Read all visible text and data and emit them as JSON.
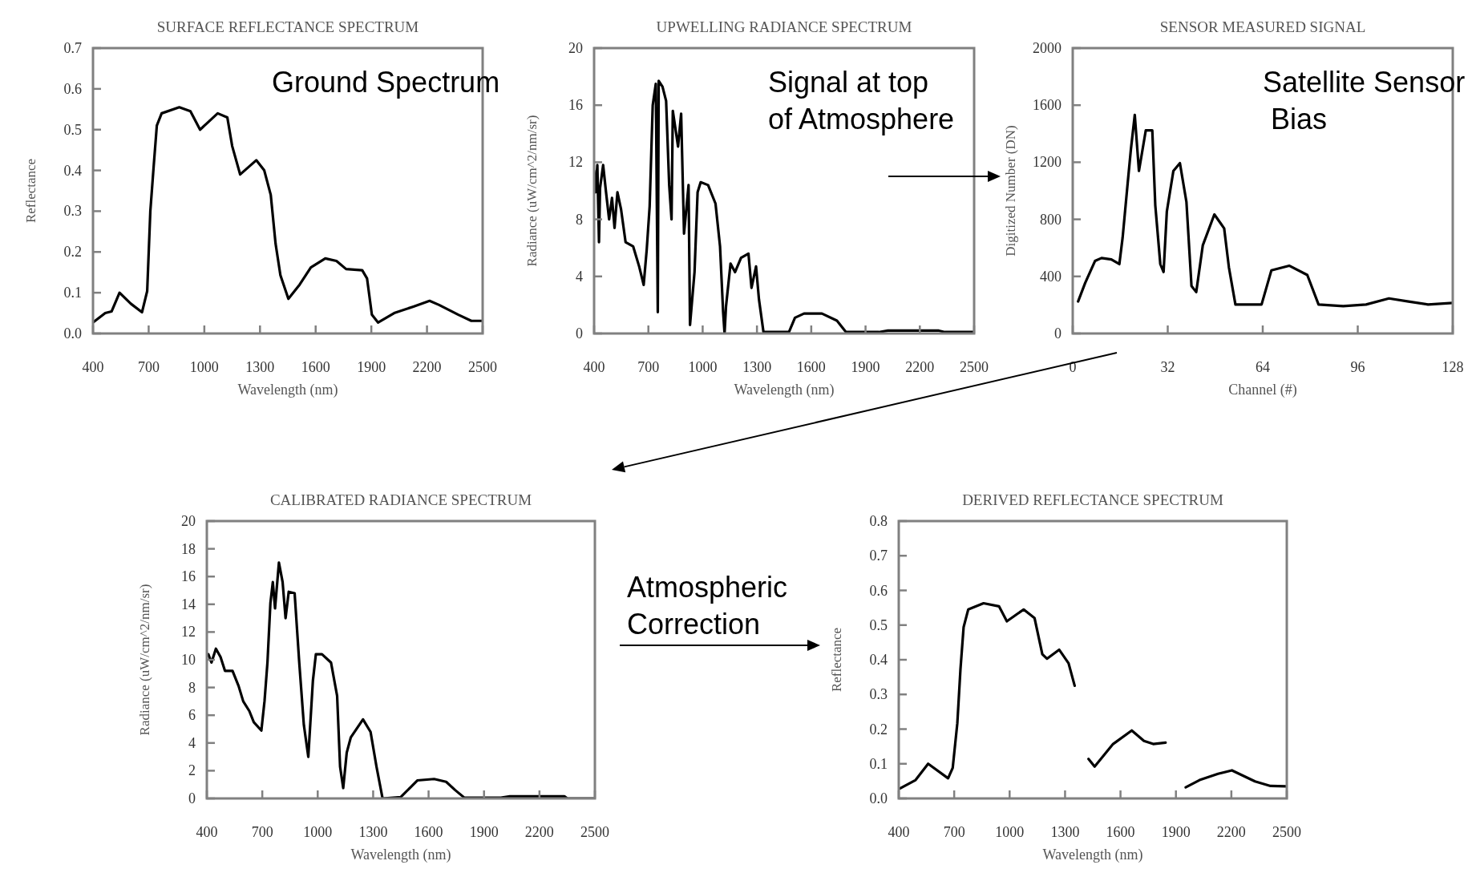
{
  "chart_data": [
    {
      "type": "line",
      "title": "SURFACE REFLECTANCE SPECTRUM",
      "xlabel": "Wavelength (nm)",
      "ylabel": "Reflectance",
      "annotations": [
        "Ground Spectrum"
      ],
      "xlim": [
        400,
        2500
      ],
      "xticks": [
        400,
        700,
        1000,
        1300,
        1600,
        1900,
        2200,
        2500
      ],
      "ylim": [
        0,
        0.7
      ],
      "yticks": [
        {
          "value": 0,
          "label": "0.0"
        },
        0.1,
        0.2,
        0.3,
        0.4,
        0.5,
        0.6,
        0.7
      ],
      "x": [
        400,
        466,
        500,
        543,
        604,
        664,
        692,
        709,
        727,
        744,
        770,
        865,
        925,
        977,
        1072,
        1124,
        1150,
        1193,
        1280,
        1323,
        1358,
        1384,
        1410,
        1453,
        1514,
        1574,
        1652,
        1712,
        1764,
        1851,
        1877,
        1903,
        1936,
        2023,
        2127,
        2214,
        2265,
        2369,
        2439,
        2500
      ],
      "series": [
        {
          "color": "#000000",
          "values": [
            0.027,
            0.05,
            0.054,
            0.1,
            0.073,
            0.052,
            0.104,
            0.3,
            0.41,
            0.51,
            0.54,
            0.555,
            0.545,
            0.5,
            0.54,
            0.53,
            0.46,
            0.39,
            0.425,
            0.4,
            0.34,
            0.22,
            0.143,
            0.085,
            0.12,
            0.162,
            0.184,
            0.178,
            0.158,
            0.155,
            0.135,
            0.046,
            0.027,
            0.05,
            0.066,
            0.08,
            0.07,
            0.046,
            0.031,
            0.031
          ]
        }
      ]
    },
    {
      "type": "line",
      "title": "UPWELLING RADIANCE SPECTRUM",
      "xlabel": "Wavelength (nm)",
      "ylabel": "Radiance (uW/cm^2/nm/sr)",
      "annotations": [
        "Signal at top\nof Atmosphere"
      ],
      "xlim": [
        400,
        2500
      ],
      "xticks": [
        400,
        700,
        1000,
        1300,
        1600,
        1900,
        2200,
        2500
      ],
      "ylim": [
        0,
        20
      ],
      "yticks": [
        0,
        4,
        8,
        12,
        16,
        20
      ],
      "x": [
        400,
        408,
        418,
        427,
        433,
        450,
        466,
        483,
        499,
        513,
        529,
        549,
        574,
        616,
        649,
        674,
        691,
        707,
        724,
        741,
        752,
        757,
        778,
        798,
        815,
        828,
        835,
        864,
        881,
        897,
        922,
        930,
        955,
        972,
        989,
        1030,
        1071,
        1096,
        1113,
        1121,
        1129,
        1154,
        1179,
        1212,
        1253,
        1270,
        1295,
        1311,
        1336,
        1477,
        1510,
        1560,
        1659,
        1742,
        1792,
        1974,
        2024,
        2305,
        2338,
        2500
      ],
      "series": [
        {
          "color": "#000000",
          "values": [
            11.4,
            9.9,
            11.8,
            6.4,
            10.2,
            11.8,
            9.9,
            8,
            9.5,
            7.4,
            9.9,
            8.7,
            6.4,
            6.1,
            4.7,
            3.4,
            5.9,
            8.9,
            16,
            17.5,
            1.5,
            17.7,
            17.3,
            16.3,
            10.4,
            8,
            15.6,
            13.1,
            15.4,
            7,
            10.4,
            0.6,
            4.3,
            9.9,
            10.6,
            10.4,
            9.1,
            6.1,
            1.5,
            0,
            1.9,
            4.9,
            4.3,
            5.3,
            5.6,
            3.2,
            4.7,
            2.4,
            0.1,
            0.1,
            1.1,
            1.4,
            1.4,
            0.9,
            0.1,
            0.1,
            0.2,
            0.2,
            0.1,
            0.1
          ]
        }
      ]
    },
    {
      "type": "line",
      "title": "SENSOR MEASURED SIGNAL",
      "xlabel": "Channel (#)",
      "ylabel": "Digitized Number (DN)",
      "annotations": [
        "Satellite Sensor\n Bias"
      ],
      "xlim": [
        0,
        128
      ],
      "xticks": [
        0,
        32,
        64,
        96,
        128
      ],
      "ylim": [
        0,
        2000
      ],
      "yticks": [
        0,
        400,
        800,
        1200,
        1600,
        2000
      ],
      "x": [
        1.8,
        4.2,
        7.5,
        9.7,
        13,
        15.7,
        16.8,
        18.5,
        19.6,
        20.9,
        22.3,
        24.6,
        26.8,
        27.8,
        29.5,
        30.6,
        31.7,
        33.9,
        36.1,
        38.3,
        40,
        41.6,
        43.8,
        47.7,
        51,
        52.6,
        54.8,
        63.6,
        66.9,
        72.9,
        79,
        82.8,
        91.1,
        98.8,
        106.5,
        113.1,
        119.7,
        128
      ],
      "series": [
        {
          "color": "#000000",
          "values": [
            224,
            355,
            508,
            529,
            519,
            486,
            671,
            1052,
            1292,
            1532,
            1139,
            1423,
            1423,
            900,
            486,
            431,
            856,
            1139,
            1194,
            921,
            333,
            290,
            617,
            834,
            737,
            464,
            203,
            203,
            442,
            475,
            410,
            203,
            192,
            203,
            246,
            224,
            203,
            214
          ]
        }
      ]
    },
    {
      "type": "line",
      "title": "CALIBRATED RADIANCE SPECTRUM",
      "xlabel": "Wavelength (nm)",
      "ylabel": "Radiance (uW/cm^2/nm/sr)",
      "annotations": [
        "Atmospheric\nCorrection"
      ],
      "xlim": [
        400,
        2500
      ],
      "xticks": [
        400,
        700,
        1000,
        1300,
        1600,
        1900,
        2200,
        2500
      ],
      "ylim": [
        0,
        20
      ],
      "yticks": [
        0,
        2,
        4,
        6,
        8,
        10,
        12,
        14,
        16,
        18,
        20
      ],
      "x": [
        408,
        425,
        449,
        474,
        498,
        539,
        572,
        597,
        630,
        654,
        695,
        712,
        728,
        744,
        757,
        769,
        790,
        810,
        826,
        843,
        875,
        900,
        925,
        949,
        974,
        990,
        1023,
        1072,
        1105,
        1121,
        1138,
        1157,
        1179,
        1245,
        1286,
        1318,
        1351,
        1449,
        1498,
        1539,
        1630,
        1695,
        1744,
        1794,
        1991,
        2040,
        2335,
        2351,
        2500
      ],
      "series": [
        {
          "color": "#000000",
          "values": [
            10.4,
            9.8,
            10.8,
            10.2,
            9.2,
            9.2,
            8.1,
            7,
            6.3,
            5.5,
            4.9,
            7,
            9.8,
            14.1,
            15.6,
            13.7,
            17,
            15.6,
            13,
            14.9,
            14.8,
            9.8,
            5.3,
            3,
            8.5,
            10.4,
            10.4,
            9.8,
            7.4,
            2.3,
            0.75,
            3.3,
            4.4,
            5.7,
            4.8,
            2.3,
            0,
            0.1,
            0.75,
            1.3,
            1.4,
            1.2,
            0.6,
            0.05,
            0.05,
            0.15,
            0.15,
            0,
            0
          ]
        }
      ]
    },
    {
      "type": "line",
      "title": "DERIVED REFLECTANCE SPECTRUM",
      "xlabel": "Wavelength (nm)",
      "ylabel": "Reflectance",
      "xlim": [
        400,
        2500
      ],
      "xticks": [
        400,
        700,
        1000,
        1300,
        1600,
        1900,
        2200,
        2500
      ],
      "ylim": [
        0,
        0.8
      ],
      "yticks": [
        {
          "value": 0,
          "label": "0.0"
        },
        0.1,
        0.2,
        0.3,
        0.4,
        0.5,
        0.6,
        0.7,
        0.8
      ],
      "x": [
        408,
        491,
        559,
        667,
        692,
        717,
        734,
        751,
        776,
        859,
        943,
        985,
        1076,
        1135,
        1177,
        1202,
        1268,
        1319,
        1352,
        1390,
        1427,
        1460,
        1560,
        1661,
        1727,
        1777,
        1844,
        1900,
        1953,
        2028,
        2128,
        2203,
        2328,
        2412,
        2495
      ],
      "series": [
        {
          "color": "#000000",
          "values": [
            0.029,
            0.053,
            0.1,
            0.058,
            0.088,
            0.217,
            0.373,
            0.494,
            0.545,
            0.563,
            0.554,
            0.511,
            0.545,
            0.52,
            0.416,
            0.403,
            0.429,
            0.39,
            0.325,
            null,
            0.114,
            0.092,
            0.157,
            0.196,
            0.166,
            0.157,
            0.161,
            null,
            0.032,
            0.053,
            0.071,
            0.081,
            0.049,
            0.036,
            0.035
          ]
        }
      ]
    }
  ]
}
